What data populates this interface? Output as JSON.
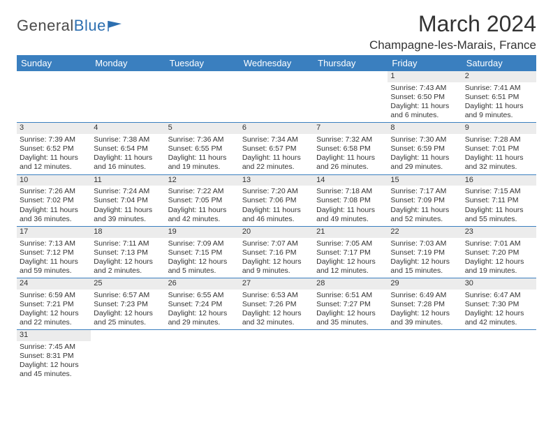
{
  "logo": {
    "general": "General",
    "blue": "Blue"
  },
  "title": "March 2024",
  "location": "Champagne-les-Marais, France",
  "colors": {
    "header_bg": "#3a7fbf",
    "header_text": "#ffffff",
    "daynum_bg": "#ececec",
    "border": "#3a7fbf",
    "text": "#333333",
    "logo_gray": "#4a4a4a",
    "logo_blue": "#2d6fb0"
  },
  "weekdays": [
    "Sunday",
    "Monday",
    "Tuesday",
    "Wednesday",
    "Thursday",
    "Friday",
    "Saturday"
  ],
  "weeks": [
    [
      null,
      null,
      null,
      null,
      null,
      {
        "d": "1",
        "sr": "7:43 AM",
        "ss": "6:50 PM",
        "dl": "11 hours and 6 minutes."
      },
      {
        "d": "2",
        "sr": "7:41 AM",
        "ss": "6:51 PM",
        "dl": "11 hours and 9 minutes."
      }
    ],
    [
      {
        "d": "3",
        "sr": "7:39 AM",
        "ss": "6:52 PM",
        "dl": "11 hours and 12 minutes."
      },
      {
        "d": "4",
        "sr": "7:38 AM",
        "ss": "6:54 PM",
        "dl": "11 hours and 16 minutes."
      },
      {
        "d": "5",
        "sr": "7:36 AM",
        "ss": "6:55 PM",
        "dl": "11 hours and 19 minutes."
      },
      {
        "d": "6",
        "sr": "7:34 AM",
        "ss": "6:57 PM",
        "dl": "11 hours and 22 minutes."
      },
      {
        "d": "7",
        "sr": "7:32 AM",
        "ss": "6:58 PM",
        "dl": "11 hours and 26 minutes."
      },
      {
        "d": "8",
        "sr": "7:30 AM",
        "ss": "6:59 PM",
        "dl": "11 hours and 29 minutes."
      },
      {
        "d": "9",
        "sr": "7:28 AM",
        "ss": "7:01 PM",
        "dl": "11 hours and 32 minutes."
      }
    ],
    [
      {
        "d": "10",
        "sr": "7:26 AM",
        "ss": "7:02 PM",
        "dl": "11 hours and 36 minutes."
      },
      {
        "d": "11",
        "sr": "7:24 AM",
        "ss": "7:04 PM",
        "dl": "11 hours and 39 minutes."
      },
      {
        "d": "12",
        "sr": "7:22 AM",
        "ss": "7:05 PM",
        "dl": "11 hours and 42 minutes."
      },
      {
        "d": "13",
        "sr": "7:20 AM",
        "ss": "7:06 PM",
        "dl": "11 hours and 46 minutes."
      },
      {
        "d": "14",
        "sr": "7:18 AM",
        "ss": "7:08 PM",
        "dl": "11 hours and 49 minutes."
      },
      {
        "d": "15",
        "sr": "7:17 AM",
        "ss": "7:09 PM",
        "dl": "11 hours and 52 minutes."
      },
      {
        "d": "16",
        "sr": "7:15 AM",
        "ss": "7:11 PM",
        "dl": "11 hours and 55 minutes."
      }
    ],
    [
      {
        "d": "17",
        "sr": "7:13 AM",
        "ss": "7:12 PM",
        "dl": "11 hours and 59 minutes."
      },
      {
        "d": "18",
        "sr": "7:11 AM",
        "ss": "7:13 PM",
        "dl": "12 hours and 2 minutes."
      },
      {
        "d": "19",
        "sr": "7:09 AM",
        "ss": "7:15 PM",
        "dl": "12 hours and 5 minutes."
      },
      {
        "d": "20",
        "sr": "7:07 AM",
        "ss": "7:16 PM",
        "dl": "12 hours and 9 minutes."
      },
      {
        "d": "21",
        "sr": "7:05 AM",
        "ss": "7:17 PM",
        "dl": "12 hours and 12 minutes."
      },
      {
        "d": "22",
        "sr": "7:03 AM",
        "ss": "7:19 PM",
        "dl": "12 hours and 15 minutes."
      },
      {
        "d": "23",
        "sr": "7:01 AM",
        "ss": "7:20 PM",
        "dl": "12 hours and 19 minutes."
      }
    ],
    [
      {
        "d": "24",
        "sr": "6:59 AM",
        "ss": "7:21 PM",
        "dl": "12 hours and 22 minutes."
      },
      {
        "d": "25",
        "sr": "6:57 AM",
        "ss": "7:23 PM",
        "dl": "12 hours and 25 minutes."
      },
      {
        "d": "26",
        "sr": "6:55 AM",
        "ss": "7:24 PM",
        "dl": "12 hours and 29 minutes."
      },
      {
        "d": "27",
        "sr": "6:53 AM",
        "ss": "7:26 PM",
        "dl": "12 hours and 32 minutes."
      },
      {
        "d": "28",
        "sr": "6:51 AM",
        "ss": "7:27 PM",
        "dl": "12 hours and 35 minutes."
      },
      {
        "d": "29",
        "sr": "6:49 AM",
        "ss": "7:28 PM",
        "dl": "12 hours and 39 minutes."
      },
      {
        "d": "30",
        "sr": "6:47 AM",
        "ss": "7:30 PM",
        "dl": "12 hours and 42 minutes."
      }
    ],
    [
      {
        "d": "31",
        "sr": "7:45 AM",
        "ss": "8:31 PM",
        "dl": "12 hours and 45 minutes."
      },
      null,
      null,
      null,
      null,
      null,
      null
    ]
  ],
  "labels": {
    "sunrise": "Sunrise: ",
    "sunset": "Sunset: ",
    "daylight": "Daylight: "
  }
}
